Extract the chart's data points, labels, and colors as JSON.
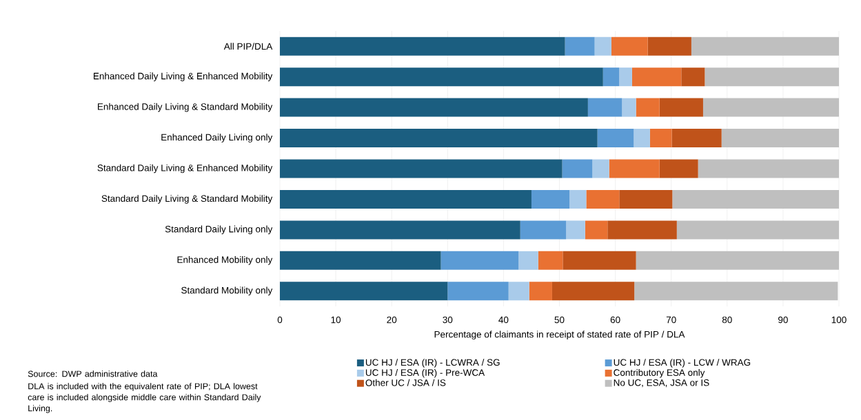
{
  "chart_data": {
    "type": "bar",
    "orientation": "horizontal",
    "stacked": true,
    "categories": [
      "All PIP/DLA",
      "Enhanced Daily Living & Enhanced Mobility",
      "Enhanced Daily Living & Standard Mobility",
      "Enhanced Daily Living only",
      "Standard Daily Living & Enhanced Mobility",
      "Standard Daily Living & Standard Mobility",
      "Standard Daily Living only",
      "Enhanced Mobility only",
      "Standard Mobility only"
    ],
    "series": [
      {
        "name": "UC HJ / ESA (IR) - LCWRA / SG",
        "color": "#1b5e80",
        "values": [
          51.0,
          57.8,
          55.1,
          56.8,
          50.5,
          45.0,
          43.0,
          28.8,
          30.0
        ]
      },
      {
        "name": "UC HJ / ESA (IR) - LCW / WRAG",
        "color": "#5b9bd5",
        "values": [
          5.3,
          2.9,
          6.1,
          6.5,
          5.4,
          6.8,
          8.2,
          13.9,
          10.9
        ]
      },
      {
        "name": "UC HJ / ESA (IR) - Pre-WCA",
        "color": "#a9cbea",
        "values": [
          3.0,
          2.3,
          2.5,
          2.9,
          3.0,
          3.0,
          3.4,
          3.5,
          3.7
        ]
      },
      {
        "name": "Contributory ESA only",
        "color": "#e97132",
        "values": [
          6.5,
          8.8,
          4.2,
          3.9,
          9.0,
          5.9,
          4.0,
          4.4,
          4.1
        ]
      },
      {
        "name": "Other UC / JSA / IS",
        "color": "#c0531a",
        "values": [
          7.8,
          4.2,
          7.8,
          8.9,
          6.9,
          9.5,
          12.4,
          13.1,
          14.7
        ]
      },
      {
        "name": "No UC, ESA, JSA or IS",
        "color": "#bfbfbf",
        "values": [
          26.4,
          24.0,
          24.3,
          21.0,
          25.2,
          29.8,
          29.0,
          36.3,
          36.4
        ]
      }
    ],
    "xlabel": "Percentage of claimants in receipt of stated rate of PIP / DLA",
    "xlim": [
      0,
      100
    ],
    "xticks": [
      0,
      10,
      20,
      30,
      40,
      50,
      60,
      70,
      80,
      90,
      100
    ],
    "grid": "x",
    "legend": "bottom",
    "annotations": [
      "Source: DWP administrative data",
      "DLA is included with the equivalent rate of PIP; DLA lowest care is included alongside middle care within Standard Daily Living."
    ]
  }
}
